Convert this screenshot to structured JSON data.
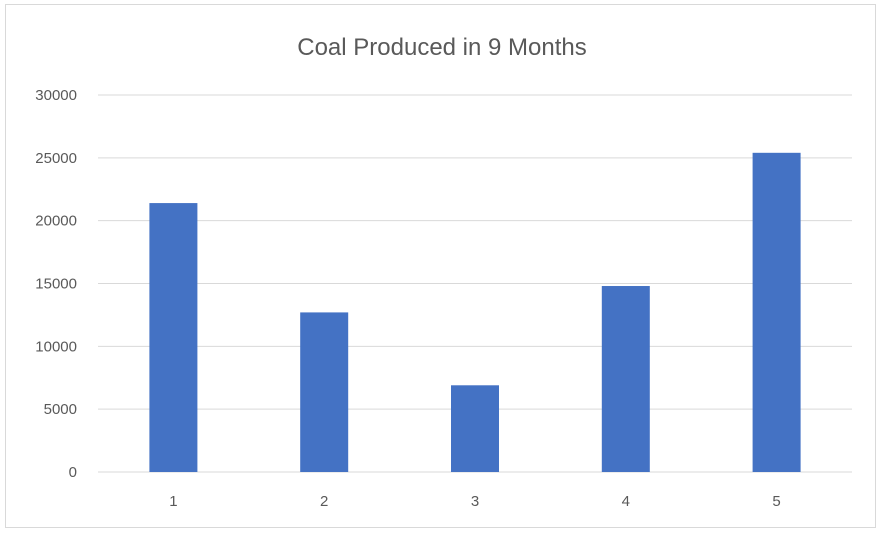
{
  "chart_data": {
    "type": "bar",
    "title": "Coal Produced in 9 Months",
    "xlabel": "",
    "ylabel": "",
    "categories": [
      "1",
      "2",
      "3",
      "4",
      "5"
    ],
    "series": [
      {
        "values": [
          21400,
          12700,
          6900,
          14800,
          25400
        ],
        "color": "#4472c4"
      }
    ],
    "ylim": [
      0,
      30000
    ],
    "yticks": [
      0,
      5000,
      10000,
      15000,
      20000,
      25000,
      30000
    ],
    "ytick_labels": [
      "0",
      "5000",
      "10000",
      "15000",
      "20000",
      "25000",
      "30000"
    ],
    "grid": true,
    "legend": "none"
  }
}
